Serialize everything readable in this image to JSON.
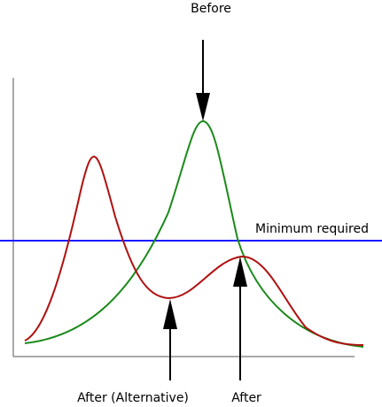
{
  "labels": {
    "before": "Before",
    "minimum": "Minimum required",
    "after_alternative": "After (Alternative)",
    "after": "After"
  }
}
